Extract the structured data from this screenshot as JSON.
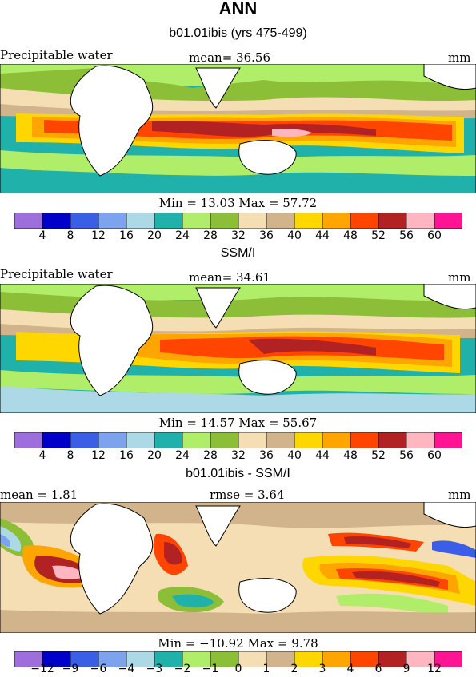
{
  "title": "ANN",
  "colors_abs": [
    "#9e6fdc",
    "#0000c8",
    "#3a5fe6",
    "#7da3ee",
    "#add8e6",
    "#20b2aa",
    "#b0ee6a",
    "#8cbf37",
    "#f5deb3",
    "#d2b48c",
    "#ffd700",
    "#ffa500",
    "#ff4500",
    "#b22222",
    "#ffb6c1",
    "#ff1493"
  ],
  "colors_diff": [
    "#9e6fdc",
    "#0000c8",
    "#3a5fe6",
    "#7da3ee",
    "#add8e6",
    "#20b2aa",
    "#b0ee6a",
    "#8cbf37",
    "#f5deb3",
    "#d2b48c",
    "#ffd700",
    "#ffa500",
    "#ff4500",
    "#b22222",
    "#ffb6c1",
    "#ff1493"
  ],
  "panels": [
    {
      "title": "b01.01ibis (yrs 475-499)",
      "left_label": "Precipitable water",
      "mid_label": "mean=  36.56",
      "right_label": "mm",
      "minmax": "Min =  13.03 Max =  57.72",
      "scale": "abs",
      "tick_labels": [
        "4",
        "8",
        "12",
        "16",
        "20",
        "24",
        "28",
        "32",
        "36",
        "40",
        "44",
        "48",
        "52",
        "56",
        "60"
      ]
    },
    {
      "title": "SSM/I",
      "left_label": "Precipitable water",
      "mid_label": "mean=  34.61",
      "right_label": "mm",
      "minmax": "Min =  14.57 Max =  55.67",
      "scale": "abs",
      "tick_labels": [
        "4",
        "8",
        "12",
        "16",
        "20",
        "24",
        "28",
        "32",
        "36",
        "40",
        "44",
        "48",
        "52",
        "56",
        "60"
      ]
    },
    {
      "title": "b01.01ibis - SSM/I",
      "left_label": "mean =   1.81",
      "mid_label": "rmse =   3.64",
      "right_label": "mm",
      "minmax": "Min = −10.92 Max =   9.78",
      "scale": "diff",
      "tick_labels": [
        "−12",
        "−9",
        "−6",
        "−4",
        "−3",
        "−2",
        "−1",
        "0",
        "1",
        "2",
        "3",
        "4",
        "6",
        "9",
        "12"
      ]
    }
  ],
  "chart_data": [
    {
      "type": "heatmap",
      "title": "b01.01ibis (yrs 475-499)",
      "variable": "Precipitable water",
      "units": "mm",
      "mean": 36.56,
      "min": 13.03,
      "max": 57.72,
      "levels": [
        4,
        8,
        12,
        16,
        20,
        24,
        28,
        32,
        36,
        40,
        44,
        48,
        52,
        56,
        60
      ]
    },
    {
      "type": "heatmap",
      "title": "SSM/I",
      "variable": "Precipitable water",
      "units": "mm",
      "mean": 34.61,
      "min": 14.57,
      "max": 55.67,
      "levels": [
        4,
        8,
        12,
        16,
        20,
        24,
        28,
        32,
        36,
        40,
        44,
        48,
        52,
        56,
        60
      ]
    },
    {
      "type": "heatmap",
      "title": "b01.01ibis - SSM/I",
      "units": "mm",
      "mean": 1.81,
      "rmse": 3.64,
      "min": -10.92,
      "max": 9.78,
      "levels": [
        -12,
        -9,
        -6,
        -4,
        -3,
        -2,
        -1,
        0,
        1,
        2,
        3,
        4,
        6,
        9,
        12
      ]
    }
  ]
}
